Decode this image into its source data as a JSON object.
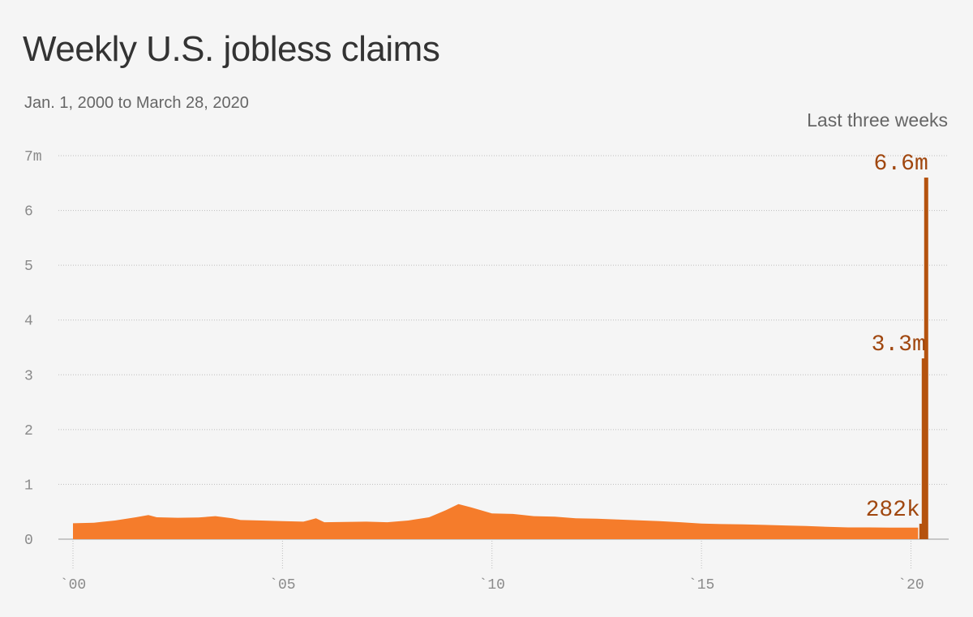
{
  "header": {
    "title": "Weekly U.S. jobless claims",
    "subtitle": "Jan. 1, 2000 to March 28, 2020",
    "note": "Last three weeks"
  },
  "colors": {
    "background": "#f5f5f5",
    "series": "#f57c2b",
    "highlight": "#b5530f",
    "label": "#a0470f",
    "grid": "#bdbdbd"
  },
  "chart_data": {
    "type": "area",
    "title": "Weekly U.S. jobless claims",
    "subtitle": "Jan. 1, 2000 to March 28, 2020",
    "ylim": [
      0,
      7000000
    ],
    "xlim": [
      2000,
      2020.9
    ],
    "grid": true,
    "yticks": [
      {
        "value": 0,
        "label": "0"
      },
      {
        "value": 1000000,
        "label": "1"
      },
      {
        "value": 2000000,
        "label": "2"
      },
      {
        "value": 3000000,
        "label": "3"
      },
      {
        "value": 4000000,
        "label": "4"
      },
      {
        "value": 5000000,
        "label": "5"
      },
      {
        "value": 6000000,
        "label": "6"
      },
      {
        "value": 7000000,
        "label": "7m"
      }
    ],
    "xticks": [
      {
        "value": 2000,
        "label": "`00"
      },
      {
        "value": 2005,
        "label": "`05"
      },
      {
        "value": 2010,
        "label": "`10"
      },
      {
        "value": 2015,
        "label": "`15"
      },
      {
        "value": 2020,
        "label": "`20"
      }
    ],
    "series": [
      {
        "values": [
          [
            2000.0,
            290000
          ],
          [
            2000.5,
            300000
          ],
          [
            2001.0,
            340000
          ],
          [
            2001.5,
            400000
          ],
          [
            2001.8,
            440000
          ],
          [
            2002.0,
            400000
          ],
          [
            2002.5,
            390000
          ],
          [
            2003.0,
            395000
          ],
          [
            2003.4,
            420000
          ],
          [
            2003.8,
            380000
          ],
          [
            2004.0,
            350000
          ],
          [
            2004.5,
            340000
          ],
          [
            2005.0,
            330000
          ],
          [
            2005.5,
            320000
          ],
          [
            2005.8,
            380000
          ],
          [
            2006.0,
            310000
          ],
          [
            2006.5,
            315000
          ],
          [
            2007.0,
            320000
          ],
          [
            2007.5,
            310000
          ],
          [
            2008.0,
            340000
          ],
          [
            2008.5,
            400000
          ],
          [
            2008.9,
            530000
          ],
          [
            2009.2,
            640000
          ],
          [
            2009.5,
            580000
          ],
          [
            2010.0,
            470000
          ],
          [
            2010.5,
            460000
          ],
          [
            2011.0,
            420000
          ],
          [
            2011.5,
            410000
          ],
          [
            2012.0,
            380000
          ],
          [
            2012.5,
            375000
          ],
          [
            2013.0,
            360000
          ],
          [
            2013.5,
            345000
          ],
          [
            2014.0,
            330000
          ],
          [
            2014.5,
            310000
          ],
          [
            2015.0,
            285000
          ],
          [
            2015.5,
            275000
          ],
          [
            2016.0,
            270000
          ],
          [
            2016.5,
            260000
          ],
          [
            2017.0,
            250000
          ],
          [
            2017.5,
            240000
          ],
          [
            2018.0,
            225000
          ],
          [
            2018.5,
            215000
          ],
          [
            2019.0,
            215000
          ],
          [
            2019.5,
            212000
          ],
          [
            2020.0,
            212000
          ],
          [
            2020.17,
            211000
          ]
        ]
      }
    ],
    "highlight_bars": [
      {
        "x": "2020-03-14",
        "value": 282000,
        "label": "282k"
      },
      {
        "x": "2020-03-21",
        "value": 3300000,
        "label": "3.3m"
      },
      {
        "x": "2020-03-28",
        "value": 6600000,
        "label": "6.6m"
      }
    ]
  }
}
